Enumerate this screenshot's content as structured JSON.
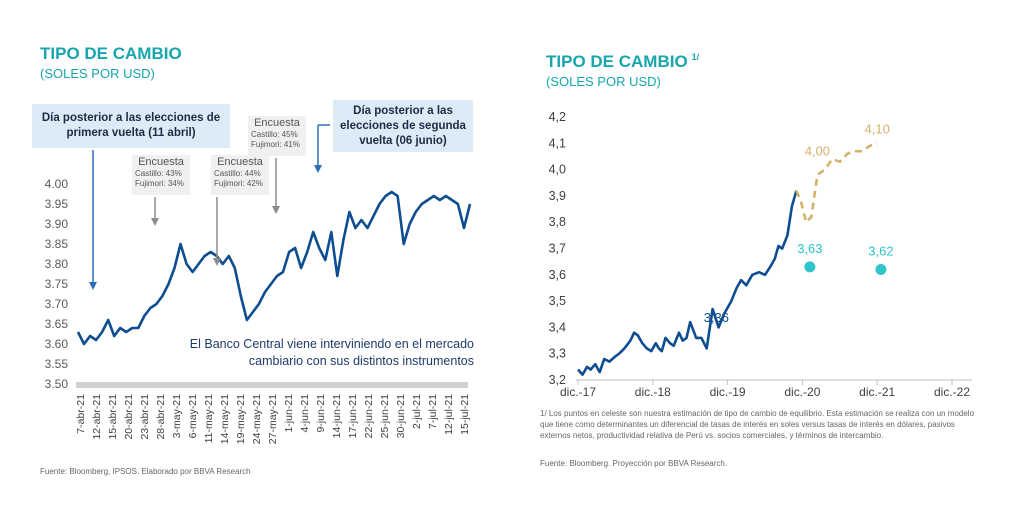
{
  "chart_data": [
    {
      "type": "line",
      "title": "TIPO DE CAMBIO",
      "subtitle": "(SOLES POR USD)",
      "yticks": [
        "3.50",
        "3.55",
        "3.60",
        "3.65",
        "3.70",
        "3.75",
        "3.80",
        "3.85",
        "3.90",
        "3.95",
        "4.00"
      ],
      "ylim": [
        3.5,
        4.0
      ],
      "xticks": [
        "7-abr-21",
        "12-abr-21",
        "15-abr-21",
        "20-abr-21",
        "23-abr-21",
        "28-abr-21",
        "3-may-21",
        "6-may-21",
        "11-may-21",
        "14-may-21",
        "19-may-21",
        "24-may-21",
        "27-may-21",
        "1-jun-21",
        "4-jun-21",
        "9-jun-21",
        "14-jun-21",
        "17-jun-21",
        "22-jun-21",
        "25-jun-21",
        "30-jun-21",
        "2-jul-21",
        "7-jul-21",
        "12-jul-21",
        "15-jul-21"
      ],
      "series": [
        {
          "values": [
            3.63,
            3.6,
            3.62,
            3.61,
            3.63,
            3.66,
            3.62,
            3.64,
            3.63,
            3.64,
            3.64,
            3.67,
            3.69,
            3.7,
            3.72,
            3.75,
            3.79,
            3.85,
            3.8,
            3.78,
            3.8,
            3.82,
            3.83,
            3.82,
            3.8,
            3.82,
            3.79,
            3.72,
            3.66,
            3.68,
            3.7,
            3.73,
            3.75,
            3.77,
            3.78,
            3.83,
            3.84,
            3.79,
            3.83,
            3.88,
            3.84,
            3.81,
            3.88,
            3.77,
            3.86,
            3.93,
            3.89,
            3.91,
            3.89,
            3.92,
            3.95,
            3.97,
            3.98,
            3.97,
            3.85,
            3.9,
            3.93,
            3.95,
            3.96,
            3.97,
            3.96,
            3.97,
            3.96,
            3.95,
            3.89,
            3.95
          ]
        }
      ],
      "callouts": [
        "Día posterior a las elecciones de primera vuelta (11 abril)",
        "Día posterior a las elecciones de segunda vuelta (06 junio)"
      ],
      "surveys": [
        {
          "heading": "Encuesta",
          "line1": "Castillo: 43%",
          "line2": "Fujimori: 34%"
        },
        {
          "heading": "Encuesta",
          "line1": "Castillo: 44%",
          "line2": "Fujimori: 42%"
        },
        {
          "heading": "Encuesta",
          "line1": "Castillo: 45%",
          "line2": "Fujimori: 41%"
        }
      ],
      "annotation": "El Banco Central viene interviniendo en el mercado cambiario con sus distintos instrumentos",
      "source": "Fuente: Bloomberg, IPSOS. Elaborado por BBVA Research",
      "colors": {
        "line": "#0e4d8f",
        "title": "#17a6ad",
        "callout_bg": "#dcebf5",
        "arrow_blue": "#2a6fb3",
        "arrow_gray": "#8c8c8c"
      }
    },
    {
      "type": "line",
      "title": "TIPO DE CAMBIO",
      "title_superscript": "1/",
      "subtitle": "(SOLES POR USD)",
      "yticks": [
        "3,2",
        "3,3",
        "3,4",
        "3,5",
        "3,6",
        "3,7",
        "3,8",
        "3,9",
        "4,0",
        "4,1",
        "4,2"
      ],
      "ylim": [
        3.2,
        4.2
      ],
      "xticks": [
        "dic.-17",
        "dic.-18",
        "dic.-19",
        "dic.-20",
        "dic.-21",
        "dic.-22"
      ],
      "series": [
        {
          "style": "solid",
          "x": [
            0,
            0.06,
            0.12,
            0.17,
            0.23,
            0.29,
            0.35,
            0.42,
            0.5,
            0.55,
            0.62,
            0.7,
            0.75,
            0.8,
            0.86,
            0.92,
            0.98,
            1.04,
            1.08,
            1.12,
            1.17,
            1.23,
            1.28,
            1.35,
            1.4,
            1.45,
            1.5,
            1.58,
            1.65,
            1.72,
            1.8,
            1.88,
            1.95,
            2.05,
            2.12,
            2.18,
            2.25,
            2.33,
            2.42,
            2.5,
            2.57,
            2.63,
            2.68,
            2.73,
            2.8,
            2.86,
            2.92
          ],
          "values": [
            3.24,
            3.22,
            3.25,
            3.24,
            3.26,
            3.23,
            3.28,
            3.27,
            3.29,
            3.3,
            3.32,
            3.35,
            3.38,
            3.37,
            3.34,
            3.32,
            3.31,
            3.34,
            3.32,
            3.31,
            3.36,
            3.34,
            3.33,
            3.38,
            3.35,
            3.36,
            3.42,
            3.36,
            3.36,
            3.32,
            3.47,
            3.4,
            3.45,
            3.5,
            3.55,
            3.58,
            3.56,
            3.6,
            3.61,
            3.6,
            3.63,
            3.66,
            3.71,
            3.7,
            3.75,
            3.86,
            3.92
          ]
        },
        {
          "style": "dashed",
          "x": [
            2.92,
            2.98,
            3.05,
            3.12,
            3.2,
            3.3,
            3.4,
            3.5,
            3.6,
            3.7,
            3.8,
            3.9,
            4.0
          ],
          "values": [
            3.92,
            3.88,
            3.8,
            3.82,
            3.98,
            4.0,
            4.04,
            4.03,
            4.06,
            4.07,
            4.07,
            4.09,
            4.1
          ]
        },
        {
          "style": "points",
          "x": [
            3.1,
            4.05
          ],
          "values": [
            3.63,
            3.62
          ]
        }
      ],
      "data_labels": [
        {
          "text": "3,36",
          "x": 1.85,
          "y": 3.36
        },
        {
          "text": "4,00",
          "x": 3.2,
          "y": 4.0
        },
        {
          "text": "4,10",
          "x": 4.0,
          "y": 4.1
        },
        {
          "text": "3,63",
          "x": 3.1,
          "y": 3.63
        },
        {
          "text": "3,62",
          "x": 4.05,
          "y": 3.62
        }
      ],
      "footnote": "1/ Los puntos en celeste son nuestra estimación de tipo de cambio de equilibrio. Esta estimación se realiza con un modelo que tiene como determinantes un diferencial de tasas de interés en soles versus tasas de interés en dólares, pasivos externos netos, productividad relativa de Perú vs. socios comerciales, y términos de intercambio.",
      "source": "Fuente: Bloomberg. Proyección por  BBVA Research.",
      "colors": {
        "line": "#0e4d8f",
        "projection": "#d4b26a",
        "equilibrium": "#2ec4c9",
        "title": "#17a6ad"
      }
    }
  ]
}
